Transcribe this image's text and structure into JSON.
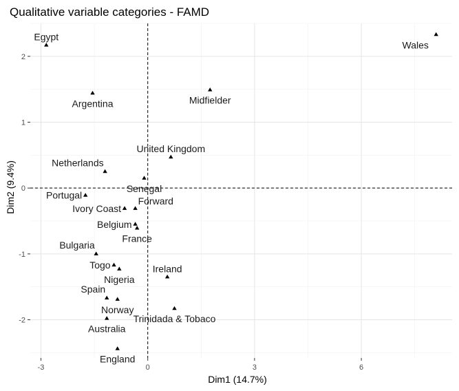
{
  "chart_data": {
    "type": "scatter",
    "title": "Qualitative variable categories - FAMD",
    "xlabel": "Dim1 (14.7%)",
    "ylabel": "Dim2 (9.4%)",
    "xlim": [
      -3.3,
      8.55
    ],
    "ylim": [
      -2.58,
      2.5
    ],
    "xticks": [
      -3,
      0,
      3,
      6
    ],
    "yticks": [
      -2,
      -1,
      0,
      1,
      2
    ],
    "grid": true,
    "reference_lines": {
      "x": 0,
      "y": 0,
      "style": "dashed"
    },
    "points": [
      {
        "label": "Egypt",
        "x": -2.85,
        "y": 2.17,
        "label_pos": "above"
      },
      {
        "label": "Wales",
        "x": 8.1,
        "y": 2.33,
        "label_pos": "below-left"
      },
      {
        "label": "Argentina",
        "x": -1.55,
        "y": 1.44,
        "label_pos": "below"
      },
      {
        "label": "Midfielder",
        "x": 1.75,
        "y": 1.49,
        "label_pos": "below"
      },
      {
        "label": "United Kingdom",
        "x": 0.65,
        "y": 0.47,
        "label_pos": "above"
      },
      {
        "label": "Netherlands",
        "x": -1.2,
        "y": 0.25,
        "label_pos": "above-left"
      },
      {
        "label": "Senegal",
        "x": -0.1,
        "y": 0.15,
        "label_pos": "below"
      },
      {
        "label": "Portugal",
        "x": -1.75,
        "y": -0.11,
        "label_pos": "left"
      },
      {
        "label": "Forward",
        "x": -0.35,
        "y": -0.31,
        "label_pos": "above-right"
      },
      {
        "label": "Ivory Coast",
        "x": -0.65,
        "y": -0.31,
        "label_pos": "left"
      },
      {
        "label": "Belgium",
        "x": -0.35,
        "y": -0.55,
        "label_pos": "left"
      },
      {
        "label": "France",
        "x": -0.3,
        "y": -0.61,
        "label_pos": "below"
      },
      {
        "label": "Bulgaria",
        "x": -1.45,
        "y": -1.0,
        "label_pos": "above-left"
      },
      {
        "label": "Togo",
        "x": -0.95,
        "y": -1.17,
        "label_pos": "left"
      },
      {
        "label": "Nigeria",
        "x": -0.8,
        "y": -1.23,
        "label_pos": "below"
      },
      {
        "label": "Ireland",
        "x": 0.55,
        "y": -1.35,
        "label_pos": "above"
      },
      {
        "label": "Spain",
        "x": -1.15,
        "y": -1.67,
        "label_pos": "above-left"
      },
      {
        "label": "Norway",
        "x": -0.85,
        "y": -1.69,
        "label_pos": "below"
      },
      {
        "label": "Trinidada & Tobaco",
        "x": 0.75,
        "y": -1.83,
        "label_pos": "below"
      },
      {
        "label": "Australia",
        "x": -1.15,
        "y": -1.98,
        "label_pos": "below"
      },
      {
        "label": "England",
        "x": -0.85,
        "y": -2.44,
        "label_pos": "below"
      }
    ]
  }
}
